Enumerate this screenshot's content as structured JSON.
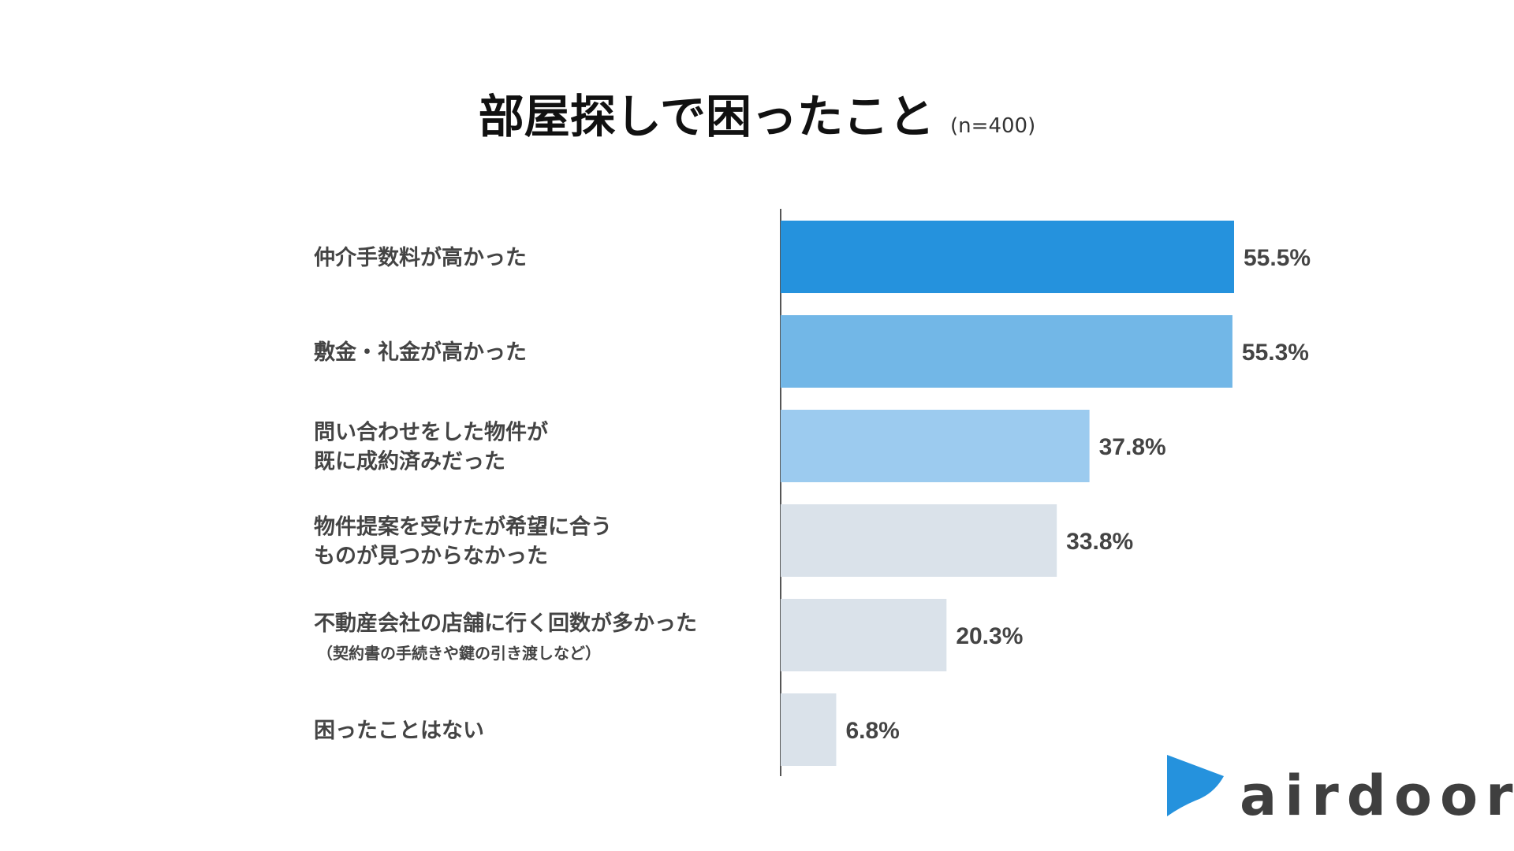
{
  "chart_data": {
    "type": "bar",
    "orientation": "horizontal",
    "title": "部屋探しで困ったこと",
    "subtitle": "(n=400)",
    "unit": "%",
    "categories": [
      {
        "lines": [
          "仲介手数料が高かった"
        ],
        "sub": ""
      },
      {
        "lines": [
          "敷金・礼金が高かった"
        ],
        "sub": ""
      },
      {
        "lines": [
          "問い合わせをした物件が",
          "既に成約済みだった"
        ],
        "sub": ""
      },
      {
        "lines": [
          "物件提案を受けたが希望に合う",
          "ものが見つからなかった"
        ],
        "sub": ""
      },
      {
        "lines": [
          "不動産会社の店舗に行く回数が多かった"
        ],
        "sub": "（契約書の手続きや鍵の引き渡しなど）"
      },
      {
        "lines": [
          "困ったことはない"
        ],
        "sub": ""
      }
    ],
    "values": [
      55.5,
      55.3,
      37.8,
      33.8,
      20.3,
      6.8
    ],
    "value_labels": [
      "55.5%",
      "55.3%",
      "37.8%",
      "33.8%",
      "20.3%",
      "6.8%"
    ],
    "colors": [
      "#2592dd",
      "#72b7e7",
      "#9ccbef",
      "#dae2ea",
      "#dae2ea",
      "#dae2ea"
    ],
    "xlim": [
      0,
      100
    ],
    "grid": false
  },
  "brand": {
    "name": "airdoor",
    "color": "#2592dd",
    "text_color": "#3f3f3f"
  }
}
